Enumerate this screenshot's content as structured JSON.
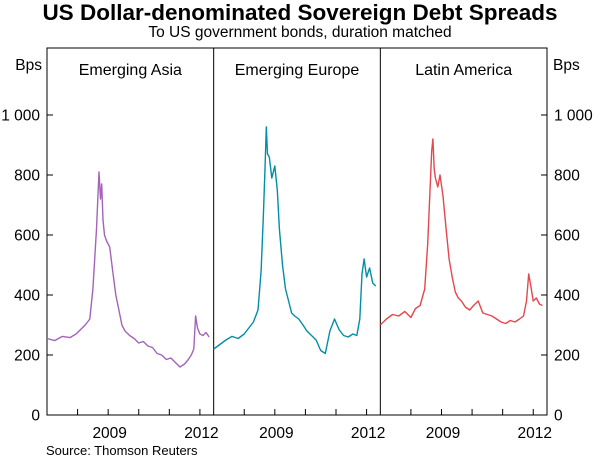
{
  "title": "US Dollar-denominated Sovereign Debt Spreads",
  "subtitle": "To US government bonds, duration matched",
  "source": "Source: Thomson Reuters",
  "chart_data": {
    "type": "line",
    "title": "US Dollar-denominated Sovereign Debt Spreads",
    "subtitle": "To US government bonds, duration matched",
    "y_unit_left": "Bps",
    "y_unit_right": "Bps",
    "ylim": [
      0,
      1000
    ],
    "yticks": [
      0,
      200,
      400,
      600,
      800,
      1000
    ],
    "ytick_labels": [
      "0",
      "200",
      "400",
      "600",
      "800",
      "1 000"
    ],
    "grid": false,
    "legend": "none",
    "panels": [
      {
        "name": "Emerging Asia",
        "color": "#a463b9",
        "x_labels": [
          "2009",
          "2012"
        ],
        "xlim": [
          2007.0,
          2012.45
        ],
        "x": [
          2007.0,
          2007.25,
          2007.5,
          2007.75,
          2007.95,
          2008.1,
          2008.25,
          2008.4,
          2008.5,
          2008.62,
          2008.7,
          2008.75,
          2008.79,
          2008.83,
          2008.88,
          2008.95,
          2009.05,
          2009.15,
          2009.25,
          2009.35,
          2009.45,
          2009.55,
          2009.7,
          2009.85,
          2010.0,
          2010.15,
          2010.3,
          2010.45,
          2010.6,
          2010.75,
          2010.9,
          2011.05,
          2011.2,
          2011.35,
          2011.5,
          2011.62,
          2011.72,
          2011.8,
          2011.86,
          2011.92,
          2012.0,
          2012.1,
          2012.2,
          2012.3
        ],
        "y": [
          255,
          248,
          262,
          258,
          270,
          285,
          300,
          320,
          420,
          620,
          810,
          720,
          770,
          650,
          600,
          580,
          560,
          480,
          400,
          350,
          300,
          280,
          265,
          255,
          240,
          245,
          230,
          225,
          205,
          200,
          185,
          190,
          175,
          160,
          170,
          185,
          200,
          220,
          330,
          290,
          270,
          265,
          275,
          260
        ]
      },
      {
        "name": "Emerging Europe",
        "color": "#008fa5",
        "x_labels": [
          "2009",
          "2012"
        ],
        "xlim": [
          2007.0,
          2012.45
        ],
        "x": [
          2007.0,
          2007.2,
          2007.4,
          2007.6,
          2007.8,
          2008.0,
          2008.15,
          2008.3,
          2008.45,
          2008.55,
          2008.62,
          2008.68,
          2008.72,
          2008.76,
          2008.82,
          2008.9,
          2009.0,
          2009.08,
          2009.15,
          2009.25,
          2009.35,
          2009.45,
          2009.55,
          2009.65,
          2009.78,
          2009.92,
          2010.05,
          2010.2,
          2010.35,
          2010.5,
          2010.65,
          2010.8,
          2010.95,
          2011.1,
          2011.25,
          2011.4,
          2011.55,
          2011.68,
          2011.78,
          2011.85,
          2011.92,
          2012.0,
          2012.1,
          2012.2,
          2012.3
        ],
        "y": [
          220,
          235,
          250,
          262,
          255,
          270,
          290,
          310,
          350,
          480,
          650,
          820,
          960,
          870,
          860,
          790,
          830,
          750,
          620,
          500,
          420,
          380,
          340,
          330,
          320,
          300,
          280,
          265,
          250,
          215,
          205,
          280,
          320,
          285,
          265,
          260,
          270,
          265,
          320,
          470,
          520,
          460,
          490,
          440,
          430
        ]
      },
      {
        "name": "Latin America",
        "color": "#e5474c",
        "x_labels": [
          "2009",
          "2012"
        ],
        "xlim": [
          2007.0,
          2012.45
        ],
        "x": [
          2007.0,
          2007.2,
          2007.4,
          2007.6,
          2007.8,
          2008.0,
          2008.15,
          2008.3,
          2008.45,
          2008.55,
          2008.62,
          2008.68,
          2008.72,
          2008.76,
          2008.8,
          2008.88,
          2008.95,
          2009.05,
          2009.15,
          2009.25,
          2009.35,
          2009.45,
          2009.55,
          2009.65,
          2009.78,
          2009.92,
          2010.05,
          2010.2,
          2010.35,
          2010.5,
          2010.65,
          2010.8,
          2010.95,
          2011.1,
          2011.25,
          2011.4,
          2011.55,
          2011.68,
          2011.78,
          2011.85,
          2011.92,
          2012.0,
          2012.1,
          2012.2,
          2012.3
        ],
        "y": [
          300,
          320,
          335,
          330,
          345,
          325,
          355,
          365,
          420,
          570,
          740,
          880,
          920,
          820,
          790,
          760,
          800,
          730,
          620,
          520,
          460,
          410,
          390,
          380,
          360,
          350,
          365,
          380,
          340,
          335,
          330,
          320,
          310,
          305,
          315,
          310,
          320,
          330,
          380,
          470,
          430,
          380,
          390,
          370,
          365
        ]
      }
    ]
  }
}
